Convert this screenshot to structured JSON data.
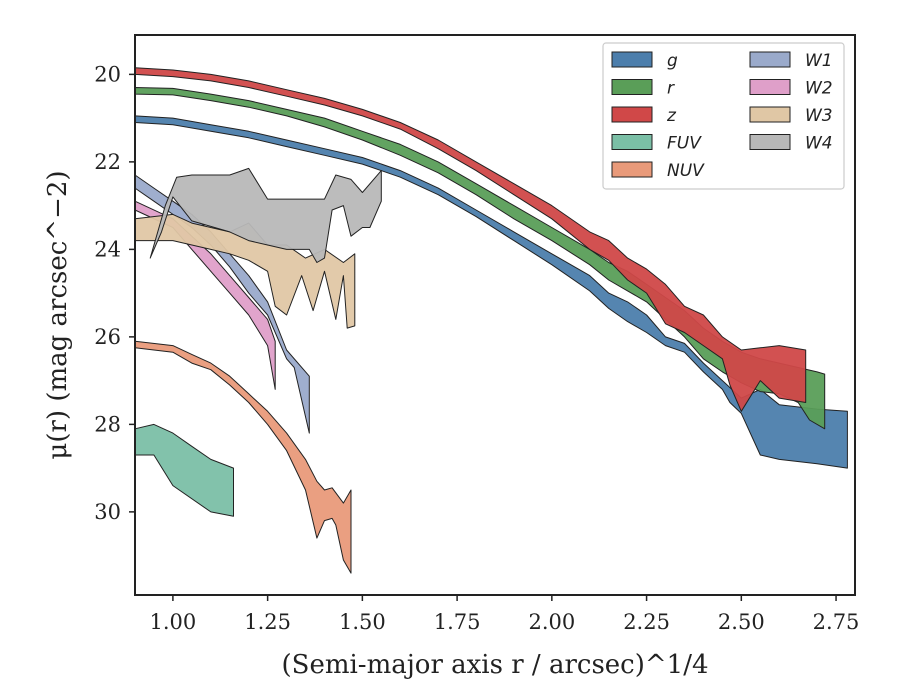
{
  "chart_data": {
    "type": "area",
    "xlabel": "(Semi-major axis r / arcsec)^1/4",
    "ylabel": "μ(r) (mag arcsec^−2)",
    "xlim": [
      0.9,
      2.8
    ],
    "ylim": [
      31.9,
      19.1
    ],
    "y_inverted": true,
    "grid": false,
    "x_ticks": [
      "1.00",
      "1.25",
      "1.50",
      "1.75",
      "2.00",
      "2.25",
      "2.50",
      "2.75"
    ],
    "x_tick_values": [
      1.0,
      1.25,
      1.5,
      1.75,
      2.0,
      2.25,
      2.5,
      2.75
    ],
    "y_ticks": [
      "20",
      "22",
      "24",
      "26",
      "28",
      "30"
    ],
    "y_tick_values": [
      20,
      22,
      24,
      26,
      28,
      30
    ],
    "legend_position": "top-right",
    "series": [
      {
        "name": "g",
        "color": "#4c7eac",
        "upper": [
          [
            0.9,
            20.95
          ],
          [
            1.0,
            21.0
          ],
          [
            1.1,
            21.15
          ],
          [
            1.2,
            21.3
          ],
          [
            1.3,
            21.5
          ],
          [
            1.4,
            21.7
          ],
          [
            1.5,
            21.9
          ],
          [
            1.6,
            22.2
          ],
          [
            1.7,
            22.6
          ],
          [
            1.8,
            23.1
          ],
          [
            1.9,
            23.6
          ],
          [
            2.0,
            24.1
          ],
          [
            2.1,
            24.6
          ],
          [
            2.15,
            25.0
          ],
          [
            2.2,
            25.2
          ],
          [
            2.25,
            25.5
          ],
          [
            2.3,
            26.0
          ],
          [
            2.35,
            26.15
          ],
          [
            2.4,
            26.6
          ],
          [
            2.45,
            27.0
          ],
          [
            2.5,
            27.4
          ],
          [
            2.55,
            27.2
          ],
          [
            2.6,
            27.55
          ],
          [
            2.7,
            27.65
          ],
          [
            2.78,
            27.7
          ]
        ],
        "lower": [
          [
            2.78,
            29.0
          ],
          [
            2.7,
            28.9
          ],
          [
            2.6,
            28.8
          ],
          [
            2.55,
            28.7
          ],
          [
            2.5,
            27.75
          ],
          [
            2.47,
            27.5
          ],
          [
            2.45,
            27.2
          ],
          [
            2.4,
            26.8
          ],
          [
            2.35,
            26.35
          ],
          [
            2.3,
            26.2
          ],
          [
            2.25,
            25.9
          ],
          [
            2.2,
            25.65
          ],
          [
            2.15,
            25.35
          ],
          [
            2.1,
            24.95
          ],
          [
            2.0,
            24.35
          ],
          [
            1.9,
            23.8
          ],
          [
            1.8,
            23.25
          ],
          [
            1.7,
            22.75
          ],
          [
            1.6,
            22.35
          ],
          [
            1.5,
            22.05
          ],
          [
            1.4,
            21.85
          ],
          [
            1.3,
            21.65
          ],
          [
            1.2,
            21.45
          ],
          [
            1.1,
            21.3
          ],
          [
            1.0,
            21.15
          ],
          [
            0.9,
            21.1
          ]
        ]
      },
      {
        "name": "r",
        "color": "#5a9e58",
        "upper": [
          [
            0.9,
            20.3
          ],
          [
            1.0,
            20.32
          ],
          [
            1.1,
            20.45
          ],
          [
            1.2,
            20.6
          ],
          [
            1.3,
            20.8
          ],
          [
            1.4,
            21.0
          ],
          [
            1.5,
            21.3
          ],
          [
            1.6,
            21.6
          ],
          [
            1.7,
            22.0
          ],
          [
            1.8,
            22.5
          ],
          [
            1.9,
            23.0
          ],
          [
            2.0,
            23.5
          ],
          [
            2.1,
            24.0
          ],
          [
            2.15,
            24.3
          ],
          [
            2.2,
            24.5
          ],
          [
            2.25,
            24.8
          ],
          [
            2.3,
            25.1
          ],
          [
            2.35,
            25.4
          ],
          [
            2.4,
            25.8
          ],
          [
            2.45,
            26.1
          ],
          [
            2.5,
            26.35
          ],
          [
            2.55,
            26.5
          ],
          [
            2.6,
            26.6
          ],
          [
            2.65,
            26.7
          ],
          [
            2.7,
            26.8
          ],
          [
            2.72,
            26.85
          ]
        ],
        "lower": [
          [
            2.72,
            28.1
          ],
          [
            2.68,
            27.9
          ],
          [
            2.65,
            27.5
          ],
          [
            2.6,
            27.3
          ],
          [
            2.55,
            27.25
          ],
          [
            2.5,
            27.05
          ],
          [
            2.45,
            26.8
          ],
          [
            2.4,
            26.5
          ],
          [
            2.35,
            26.0
          ],
          [
            2.3,
            25.6
          ],
          [
            2.25,
            25.2
          ],
          [
            2.2,
            24.95
          ],
          [
            2.15,
            24.7
          ],
          [
            2.1,
            24.35
          ],
          [
            2.0,
            23.8
          ],
          [
            1.9,
            23.3
          ],
          [
            1.8,
            22.75
          ],
          [
            1.7,
            22.25
          ],
          [
            1.6,
            21.85
          ],
          [
            1.5,
            21.5
          ],
          [
            1.4,
            21.2
          ],
          [
            1.3,
            20.95
          ],
          [
            1.2,
            20.75
          ],
          [
            1.1,
            20.6
          ],
          [
            1.0,
            20.47
          ],
          [
            0.9,
            20.45
          ]
        ]
      },
      {
        "name": "z",
        "color": "#d04848",
        "upper": [
          [
            0.9,
            19.85
          ],
          [
            1.0,
            19.9
          ],
          [
            1.1,
            20.0
          ],
          [
            1.2,
            20.15
          ],
          [
            1.3,
            20.35
          ],
          [
            1.4,
            20.55
          ],
          [
            1.5,
            20.8
          ],
          [
            1.6,
            21.1
          ],
          [
            1.7,
            21.5
          ],
          [
            1.8,
            22.0
          ],
          [
            1.9,
            22.5
          ],
          [
            2.0,
            23.0
          ],
          [
            2.1,
            23.6
          ],
          [
            2.15,
            23.8
          ],
          [
            2.2,
            24.2
          ],
          [
            2.25,
            24.45
          ],
          [
            2.3,
            24.8
          ],
          [
            2.35,
            25.3
          ],
          [
            2.4,
            25.5
          ],
          [
            2.45,
            26.0
          ],
          [
            2.5,
            26.3
          ],
          [
            2.55,
            26.25
          ],
          [
            2.6,
            26.2
          ],
          [
            2.67,
            26.3
          ],
          [
            2.67,
            27.5
          ]
        ],
        "lower": [
          [
            2.67,
            27.5
          ],
          [
            2.6,
            27.4
          ],
          [
            2.55,
            27.0
          ],
          [
            2.5,
            27.7
          ],
          [
            2.47,
            27.1
          ],
          [
            2.45,
            26.5
          ],
          [
            2.4,
            26.2
          ],
          [
            2.35,
            25.9
          ],
          [
            2.3,
            25.7
          ],
          [
            2.25,
            25.0
          ],
          [
            2.2,
            24.7
          ],
          [
            2.15,
            24.25
          ],
          [
            2.1,
            24.0
          ],
          [
            2.0,
            23.3
          ],
          [
            1.9,
            22.75
          ],
          [
            1.8,
            22.2
          ],
          [
            1.7,
            21.7
          ],
          [
            1.6,
            21.25
          ],
          [
            1.5,
            20.95
          ],
          [
            1.4,
            20.7
          ],
          [
            1.3,
            20.5
          ],
          [
            1.2,
            20.3
          ],
          [
            1.1,
            20.15
          ],
          [
            1.0,
            20.05
          ],
          [
            0.9,
            20.0
          ]
        ]
      },
      {
        "name": "FUV",
        "color": "#7bbfa6",
        "upper": [
          [
            0.9,
            28.1
          ],
          [
            0.95,
            28.0
          ],
          [
            1.0,
            28.2
          ],
          [
            1.05,
            28.5
          ],
          [
            1.1,
            28.8
          ],
          [
            1.16,
            29.0
          ]
        ],
        "lower": [
          [
            1.16,
            30.1
          ],
          [
            1.1,
            30.0
          ],
          [
            1.0,
            29.4
          ],
          [
            0.95,
            28.7
          ],
          [
            0.9,
            28.7
          ]
        ]
      },
      {
        "name": "NUV",
        "color": "#e99a7a",
        "upper": [
          [
            0.9,
            26.1
          ],
          [
            1.0,
            26.2
          ],
          [
            1.05,
            26.4
          ],
          [
            1.1,
            26.6
          ],
          [
            1.15,
            26.9
          ],
          [
            1.2,
            27.3
          ],
          [
            1.25,
            27.7
          ],
          [
            1.3,
            28.2
          ],
          [
            1.35,
            28.8
          ],
          [
            1.38,
            29.3
          ],
          [
            1.4,
            29.5
          ],
          [
            1.42,
            29.45
          ],
          [
            1.45,
            29.8
          ],
          [
            1.47,
            29.5
          ]
        ],
        "lower": [
          [
            1.47,
            31.4
          ],
          [
            1.45,
            31.1
          ],
          [
            1.43,
            30.3
          ],
          [
            1.42,
            30.15
          ],
          [
            1.4,
            30.2
          ],
          [
            1.38,
            30.6
          ],
          [
            1.35,
            29.5
          ],
          [
            1.3,
            28.6
          ],
          [
            1.25,
            28.0
          ],
          [
            1.2,
            27.5
          ],
          [
            1.15,
            27.1
          ],
          [
            1.1,
            26.75
          ],
          [
            1.05,
            26.6
          ],
          [
            1.0,
            26.35
          ],
          [
            0.9,
            26.25
          ]
        ]
      },
      {
        "name": "W1",
        "color": "#9aaacb",
        "upper": [
          [
            0.9,
            22.3
          ],
          [
            0.95,
            22.6
          ],
          [
            1.0,
            22.9
          ],
          [
            1.05,
            23.2
          ],
          [
            1.1,
            23.6
          ],
          [
            1.15,
            24.1
          ],
          [
            1.2,
            24.6
          ],
          [
            1.25,
            25.2
          ],
          [
            1.3,
            26.3
          ],
          [
            1.36,
            26.9
          ]
        ],
        "lower": [
          [
            1.36,
            28.2
          ],
          [
            1.32,
            26.7
          ],
          [
            1.3,
            26.5
          ],
          [
            1.25,
            25.5
          ],
          [
            1.2,
            25.0
          ],
          [
            1.15,
            24.4
          ],
          [
            1.1,
            23.9
          ],
          [
            1.05,
            23.5
          ],
          [
            1.0,
            23.2
          ],
          [
            0.95,
            22.9
          ],
          [
            0.9,
            22.6
          ]
        ]
      },
      {
        "name": "W2",
        "color": "#df9fc9",
        "upper": [
          [
            0.9,
            22.9
          ],
          [
            1.0,
            23.3
          ],
          [
            1.05,
            23.7
          ],
          [
            1.1,
            24.1
          ],
          [
            1.15,
            24.6
          ],
          [
            1.2,
            25.1
          ],
          [
            1.25,
            25.6
          ],
          [
            1.27,
            26.1
          ]
        ],
        "lower": [
          [
            1.27,
            27.2
          ],
          [
            1.25,
            26.2
          ],
          [
            1.2,
            25.5
          ],
          [
            1.15,
            25.0
          ],
          [
            1.1,
            24.5
          ],
          [
            1.05,
            24.0
          ],
          [
            1.0,
            23.5
          ],
          [
            0.9,
            23.1
          ]
        ]
      },
      {
        "name": "W3",
        "color": "#e0c7a5",
        "upper": [
          [
            0.9,
            23.3
          ],
          [
            1.0,
            23.2
          ],
          [
            1.05,
            23.4
          ],
          [
            1.1,
            23.5
          ],
          [
            1.15,
            23.6
          ],
          [
            1.2,
            23.4
          ],
          [
            1.25,
            23.9
          ],
          [
            1.3,
            23.9
          ],
          [
            1.35,
            24.2
          ],
          [
            1.4,
            24.0
          ],
          [
            1.45,
            24.3
          ],
          [
            1.48,
            24.1
          ]
        ],
        "lower": [
          [
            1.48,
            25.75
          ],
          [
            1.46,
            25.8
          ],
          [
            1.45,
            24.6
          ],
          [
            1.43,
            25.6
          ],
          [
            1.4,
            24.5
          ],
          [
            1.37,
            25.4
          ],
          [
            1.34,
            24.6
          ],
          [
            1.3,
            25.5
          ],
          [
            1.27,
            25.3
          ],
          [
            1.25,
            24.5
          ],
          [
            1.2,
            24.25
          ],
          [
            1.15,
            24.1
          ],
          [
            1.1,
            24.0
          ],
          [
            1.0,
            23.8
          ],
          [
            0.9,
            23.8
          ]
        ]
      },
      {
        "name": "W4",
        "color": "#b8b8b8",
        "upper": [
          [
            0.94,
            24.2
          ],
          [
            0.98,
            23.0
          ],
          [
            1.01,
            22.35
          ],
          [
            1.05,
            22.3
          ],
          [
            1.1,
            22.3
          ],
          [
            1.15,
            22.3
          ],
          [
            1.2,
            22.15
          ],
          [
            1.25,
            22.85
          ],
          [
            1.3,
            22.85
          ],
          [
            1.35,
            22.85
          ],
          [
            1.4,
            22.85
          ],
          [
            1.43,
            22.3
          ],
          [
            1.47,
            22.4
          ],
          [
            1.5,
            22.7
          ],
          [
            1.55,
            22.2
          ]
        ],
        "lower": [
          [
            1.55,
            22.9
          ],
          [
            1.52,
            23.5
          ],
          [
            1.5,
            23.5
          ],
          [
            1.47,
            23.7
          ],
          [
            1.45,
            23.0
          ],
          [
            1.42,
            23.1
          ],
          [
            1.4,
            24.2
          ],
          [
            1.38,
            24.3
          ],
          [
            1.36,
            24.0
          ],
          [
            1.3,
            24.0
          ],
          [
            1.25,
            23.9
          ],
          [
            1.2,
            23.8
          ],
          [
            1.15,
            23.6
          ],
          [
            1.05,
            23.35
          ],
          [
            1.0,
            22.8
          ],
          [
            0.97,
            23.6
          ],
          [
            0.94,
            24.2
          ]
        ]
      }
    ]
  }
}
